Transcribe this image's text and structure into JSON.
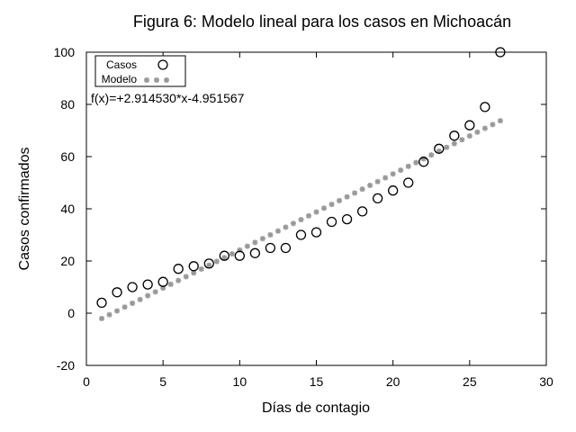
{
  "chart_data": {
    "type": "scatter",
    "title": "Figura 6: Modelo lineal para los casos en Michoacán",
    "xlabel": "Días de contagio",
    "ylabel": "Casos confirmados",
    "xlim": [
      0,
      30
    ],
    "ylim": [
      -20,
      100
    ],
    "xticks": [
      0,
      5,
      10,
      15,
      20,
      25,
      30
    ],
    "yticks": [
      -20,
      0,
      20,
      40,
      60,
      80,
      100
    ],
    "grid": false,
    "legend_position": "top-left",
    "annotation": "f(x)=+2.914530*x-4.951567",
    "colors": {
      "cases": "#000000",
      "model": "#999999"
    },
    "model": {
      "slope": 2.91453,
      "intercept": -4.951567,
      "x_start": 1,
      "x_end": 27,
      "step": 0.5
    },
    "series": [
      {
        "name": "Casos",
        "marker": "open-circle",
        "x": [
          1,
          2,
          3,
          4,
          5,
          6,
          7,
          8,
          9,
          10,
          11,
          12,
          13,
          14,
          15,
          16,
          17,
          18,
          19,
          20,
          21,
          22,
          23,
          24,
          25,
          26,
          27
        ],
        "y": [
          4,
          8,
          10,
          11,
          12,
          17,
          18,
          19,
          22,
          22,
          23,
          25,
          25,
          30,
          31,
          35,
          36,
          39,
          44,
          47,
          50,
          58,
          63,
          68,
          72,
          79,
          100
        ]
      },
      {
        "name": "Modelo",
        "marker": "asterisk"
      }
    ]
  }
}
